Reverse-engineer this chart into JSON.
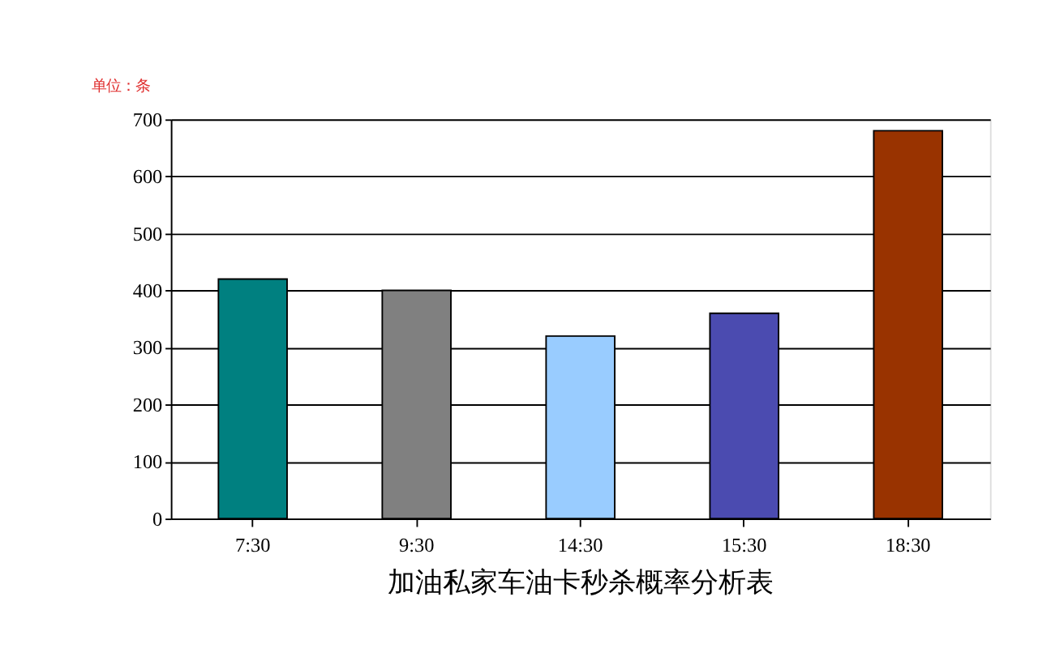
{
  "chart_data": {
    "type": "bar",
    "title": "加油私家车油卡秒杀概率分析表",
    "annotations": [
      "单位：条"
    ],
    "categories": [
      "7:30",
      "9:30",
      "14:30",
      "15:30",
      "18:30"
    ],
    "values": [
      420,
      400,
      320,
      360,
      680
    ],
    "colors": [
      "#008080",
      "#808080",
      "#99ccff",
      "#4b4bb0",
      "#993300"
    ],
    "ylim": [
      0,
      700
    ],
    "yticks": [
      0,
      100,
      200,
      300,
      400,
      500,
      600,
      700
    ],
    "grid": "y"
  }
}
